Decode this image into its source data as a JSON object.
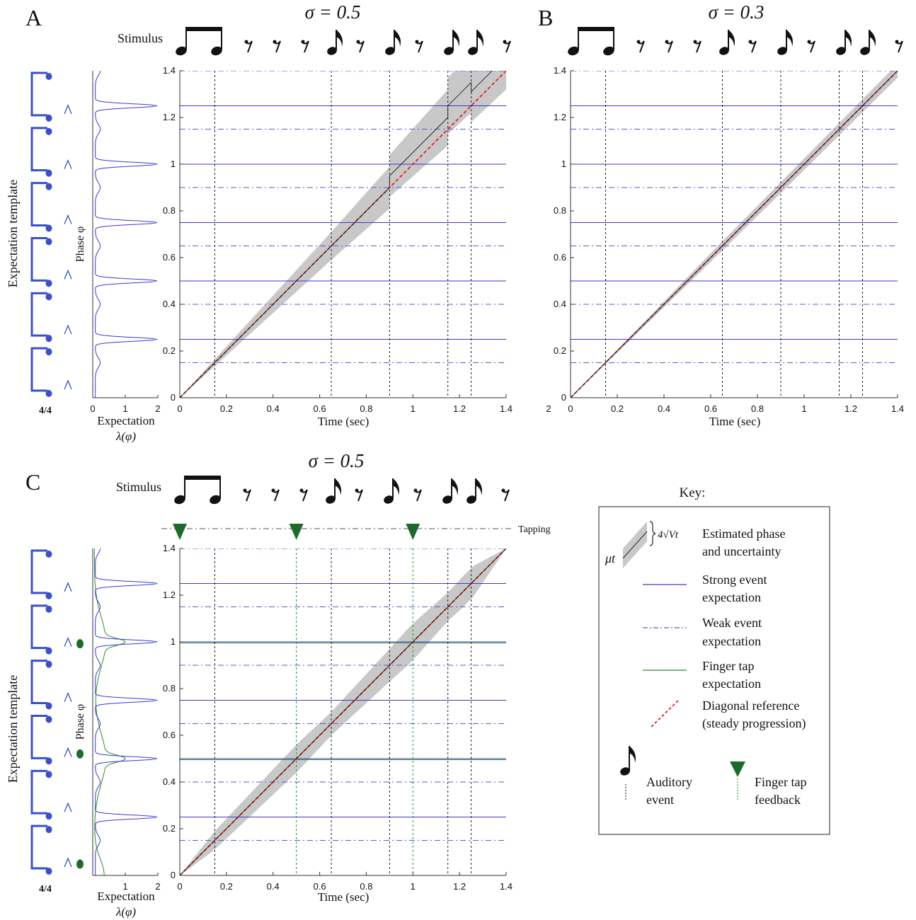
{
  "panels": {
    "A": {
      "letter": "A",
      "sigma": "σ = 0.5",
      "stimulus_label": "Stimulus",
      "ylabel": "Phase φ",
      "xlabel": "Time (sec)",
      "expectation_xlabel": "Expectation",
      "expectation_xlabel2": "λ(φ)",
      "template_label": "Expectation template",
      "time_signature": "4/4",
      "x_ticks": [
        "0",
        "0.2",
        "0.4",
        "0.6",
        "0.8",
        "1",
        "1.2",
        "1.4"
      ],
      "y_ticks": [
        "0",
        "0.2",
        "0.4",
        "0.6",
        "0.8",
        "1",
        "1.2",
        "1.4"
      ],
      "exp_ticks": [
        "0",
        "1",
        "2"
      ]
    },
    "B": {
      "letter": "B",
      "sigma": "σ = 0.3",
      "xlabel": "Time (sec)",
      "stray_tick": "2",
      "x_ticks": [
        "0",
        "0.2",
        "0.4",
        "0.6",
        "0.8",
        "1",
        "1.2",
        "1.4"
      ],
      "y_ticks": [
        "0",
        "0.2",
        "0.4",
        "0.6",
        "0.8",
        "1",
        "1.2",
        "1.4"
      ]
    },
    "C": {
      "letter": "C",
      "sigma": "σ = 0.5",
      "stimulus_label": "Stimulus",
      "tapping_label": "Tapping",
      "ylabel": "Phase φ",
      "xlabel": "Time (sec)",
      "expectation_xlabel": "Expectation",
      "expectation_xlabel2": "λ(φ)",
      "template_label": "Expectation template",
      "time_signature": "4/4",
      "x_ticks": [
        "0",
        "0.2",
        "0.4",
        "0.6",
        "0.8",
        "1",
        "1.2",
        "1.4"
      ],
      "y_ticks": [
        "0",
        "0.2",
        "0.4",
        "0.6",
        "0.8",
        "1",
        "1.2",
        "1.4"
      ],
      "exp_ticks": [
        "1",
        "2"
      ]
    }
  },
  "key": {
    "title": "Key:",
    "mu_symbol": "μt",
    "sd_symbol": "4√Vt",
    "items": [
      {
        "line1": "Estimated phase",
        "line2": "and uncertainty"
      },
      {
        "line1": "Strong event",
        "line2": "expectation"
      },
      {
        "line1": "Weak event",
        "line2": "expectation"
      },
      {
        "line1": "Finger tap",
        "line2": "expectation"
      },
      {
        "line1": "Diagonal reference",
        "line2": "(steady progression)"
      },
      {
        "line1": "Auditory",
        "line2": "event"
      },
      {
        "line1": "Finger tap",
        "line2": "feedback"
      }
    ]
  },
  "colors": {
    "strong": "#3a3ad0",
    "weak": "#5a5ad8",
    "tap": "#2e8b2e",
    "diag": "#e02020",
    "band": "#c8c8c8",
    "tap_marker": "#1d6b2a",
    "template": "#3a4fc8"
  },
  "chart_data": [
    {
      "panel": "A",
      "type": "line",
      "xlim": [
        0,
        1.4
      ],
      "ylim": [
        0,
        1.4
      ],
      "sigma": 0.5,
      "strong_expectation_phases": [
        0.25,
        0.5,
        0.75,
        1.0,
        1.25
      ],
      "weak_expectation_phases": [
        0.15,
        0.4,
        0.65,
        0.9,
        1.15,
        1.4
      ],
      "auditory_events": [
        0.15,
        0.65,
        0.9,
        1.15,
        1.25
      ],
      "estimated_phase": {
        "segments": [
          {
            "x": [
              0,
              0.9
            ],
            "y": [
              0,
              0.9
            ]
          },
          {
            "x": [
              0.9,
              1.15
            ],
            "y": [
              0.95,
              1.2
            ]
          },
          {
            "x": [
              1.15,
              1.25
            ],
            "y": [
              1.25,
              1.35
            ]
          },
          {
            "x": [
              1.25,
              1.4
            ],
            "y": [
              1.31,
              1.46
            ]
          }
        ],
        "band_halfwidth": [
          {
            "x": 0,
            "w": 0
          },
          {
            "x": 0.15,
            "w": 0.015
          },
          {
            "x": 0.65,
            "w": 0.06
          },
          {
            "x": 0.9,
            "w": 0.09
          },
          {
            "x": 1.15,
            "w": 0.12
          },
          {
            "x": 1.25,
            "w": 0.13
          },
          {
            "x": 1.4,
            "w": 0.14
          }
        ]
      },
      "diagonal_reference": {
        "x": [
          0,
          1.4
        ],
        "y": [
          0,
          1.4
        ]
      },
      "expectation_template": {
        "xlim": [
          0,
          2
        ],
        "peaks": [
          0.25,
          0.5,
          0.75,
          1.0,
          1.25
        ],
        "peak_value": 2
      }
    },
    {
      "panel": "B",
      "type": "line",
      "xlim": [
        0,
        1.4
      ],
      "ylim": [
        0,
        1.4
      ],
      "sigma": 0.3,
      "strong_expectation_phases": [
        0.25,
        0.5,
        0.75,
        1.0,
        1.25
      ],
      "weak_expectation_phases": [
        0.15,
        0.4,
        0.65,
        0.9,
        1.15,
        1.4
      ],
      "auditory_events": [
        0.15,
        0.65,
        0.9,
        1.15,
        1.25
      ],
      "estimated_phase": {
        "segments": [
          {
            "x": [
              0,
              1.4
            ],
            "y": [
              0,
              1.4
            ]
          }
        ],
        "band_halfwidth": [
          {
            "x": 0,
            "w": 0
          },
          {
            "x": 0.65,
            "w": 0.02
          },
          {
            "x": 1.4,
            "w": 0.03
          }
        ]
      },
      "diagonal_reference": {
        "x": [
          0,
          1.4
        ],
        "y": [
          0,
          1.4
        ]
      }
    },
    {
      "panel": "C",
      "type": "line",
      "xlim": [
        0,
        1.4
      ],
      "ylim": [
        0,
        1.4
      ],
      "sigma": 0.5,
      "strong_expectation_phases": [
        0.25,
        0.5,
        0.75,
        1.0,
        1.25
      ],
      "weak_expectation_phases": [
        0.15,
        0.4,
        0.65,
        0.9,
        1.15,
        1.4
      ],
      "tap_expectation_phases": [
        0.5,
        1.0
      ],
      "auditory_events": [
        0.15,
        0.65,
        0.9,
        1.15,
        1.25
      ],
      "finger_taps": [
        0.0,
        0.5,
        1.0
      ],
      "estimated_phase": {
        "segments": [
          {
            "x": [
              0,
              1.4
            ],
            "y": [
              0,
              1.4
            ]
          }
        ],
        "band_halfwidth": [
          {
            "x": 0,
            "w": 0
          },
          {
            "x": 0.15,
            "w": 0.04
          },
          {
            "x": 0.5,
            "w": 0.06
          },
          {
            "x": 0.65,
            "w": 0.05
          },
          {
            "x": 0.9,
            "w": 0.07
          },
          {
            "x": 1.0,
            "w": 0.08
          },
          {
            "x": 1.15,
            "w": 0.06
          },
          {
            "x": 1.25,
            "w": 0.07
          },
          {
            "x": 1.4,
            "w": 0.0
          }
        ]
      },
      "diagonal_reference": {
        "x": [
          0,
          1.4
        ],
        "y": [
          0,
          1.4
        ]
      },
      "expectation_template": {
        "xlim": [
          0,
          2
        ],
        "peaks": [
          0.25,
          0.5,
          0.75,
          1.0,
          1.25
        ],
        "peak_value": 2
      }
    }
  ]
}
